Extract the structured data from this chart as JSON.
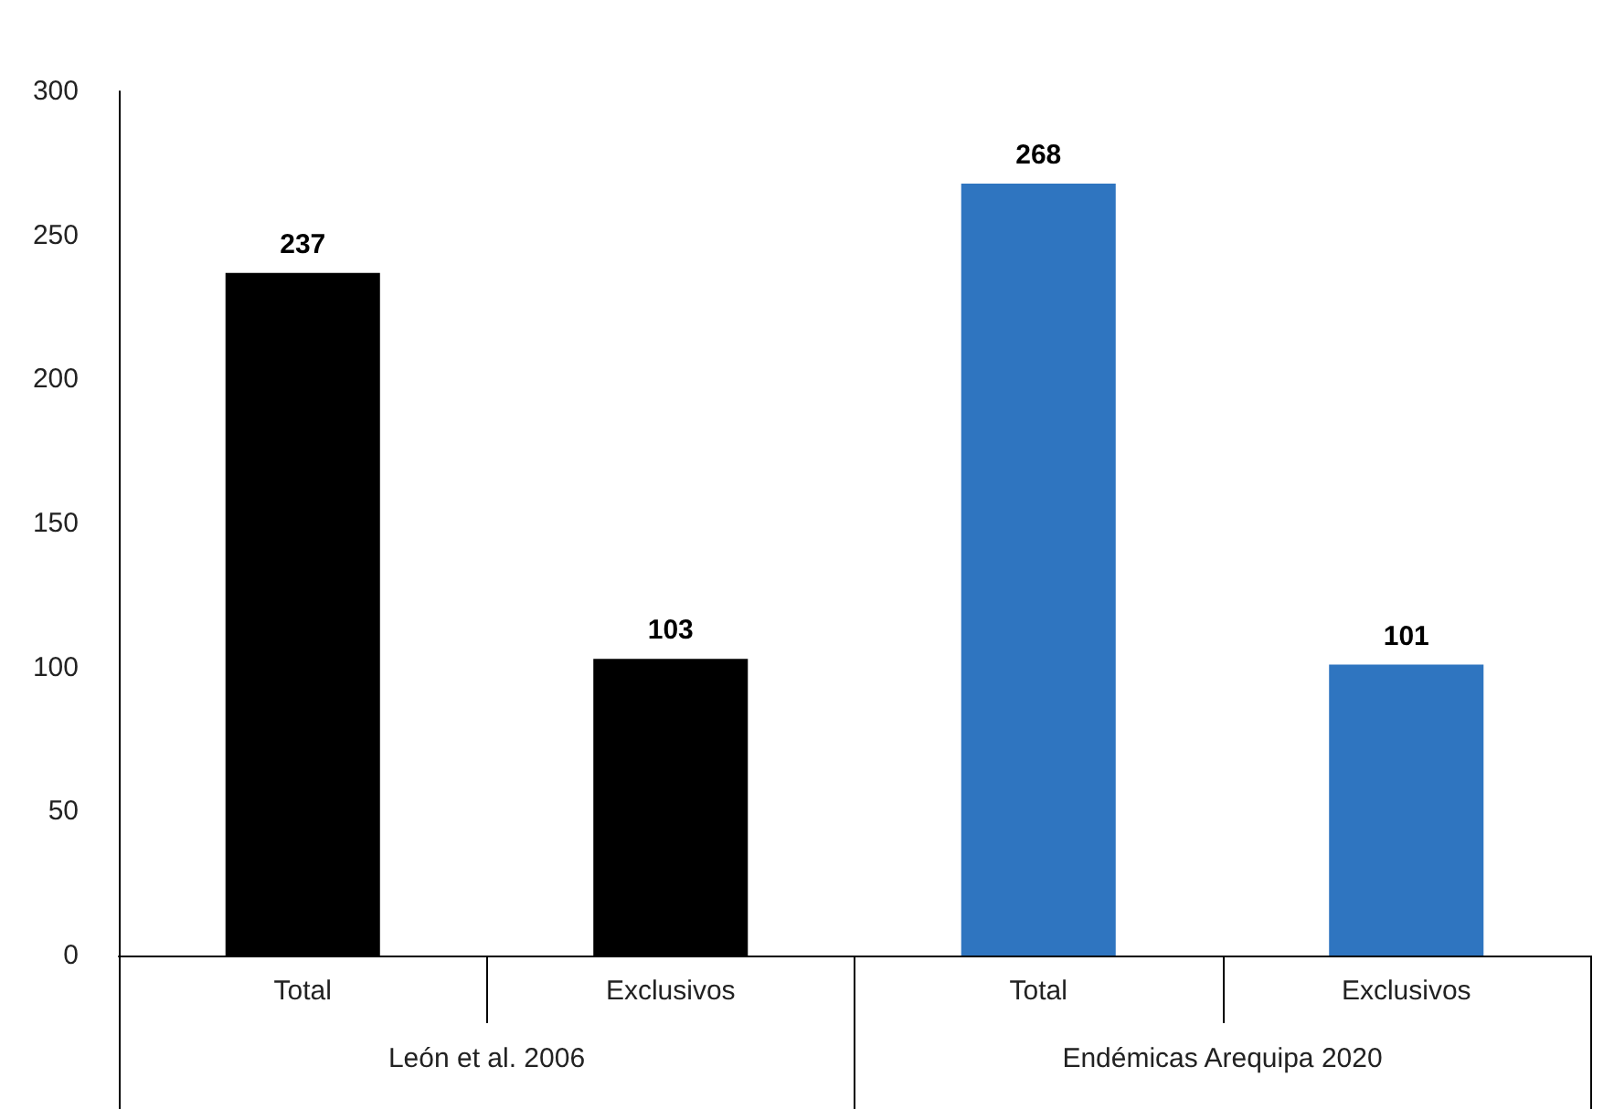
{
  "chart_data": {
    "type": "bar",
    "categories": [
      "Total",
      "Exclusivos",
      "Total",
      "Exclusivos"
    ],
    "series": [
      {
        "color": "#000000",
        "values": [
          237,
          103,
          null,
          null
        ]
      },
      {
        "color": "#2f75c0",
        "values": [
          null,
          null,
          268,
          101
        ]
      }
    ],
    "annotations": [
      "León et al. 2006",
      "Endémicas Arequipa 2020"
    ],
    "ylim": [
      0,
      300
    ],
    "yticks": [
      0,
      50,
      100,
      150,
      200,
      250,
      300
    ],
    "grid": false,
    "data_labels": true
  }
}
